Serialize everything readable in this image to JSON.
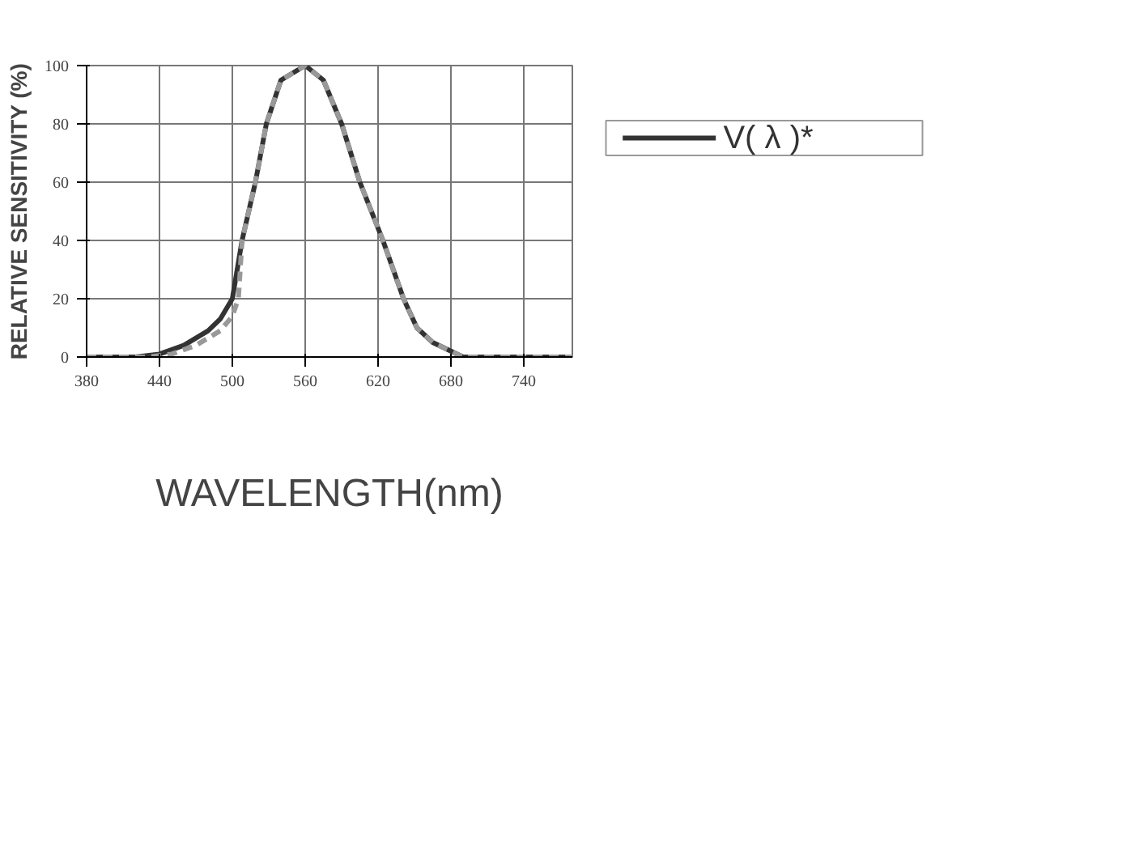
{
  "chart_data": {
    "type": "line",
    "xlabel": "WAVELENGTH(nm)",
    "ylabel": "RELATIVE SENSITIVITY (%)",
    "xlim": [
      380,
      780
    ],
    "ylim": [
      0,
      100
    ],
    "xticks": [
      380,
      440,
      500,
      560,
      620,
      680,
      740
    ],
    "yticks": [
      0,
      20,
      40,
      60,
      80,
      100
    ],
    "grid": true,
    "legend": "right",
    "series": [
      {
        "name": "V( λ )*",
        "color": "#333333",
        "line_style": "solid",
        "x": [
          380,
          420,
          440,
          460,
          480,
          490,
          500,
          508,
          519,
          528,
          540,
          560,
          575,
          590,
          605,
          624,
          641,
          652,
          665,
          680,
          690,
          740,
          780
        ],
        "values": [
          0,
          0,
          1,
          4,
          9,
          13,
          20,
          40,
          60,
          80,
          95,
          100,
          95,
          80,
          60,
          40,
          20,
          10,
          5,
          2,
          0,
          0,
          0
        ]
      },
      {
        "color": "#999999",
        "line_style": "dashed",
        "x": [
          380,
          430,
          450,
          470,
          490,
          500,
          505,
          508,
          519,
          528,
          540,
          560,
          575,
          590,
          605,
          624,
          641,
          652,
          665,
          680,
          690,
          740,
          780
        ],
        "values": [
          0,
          0,
          1,
          4,
          9,
          14,
          20,
          40,
          60,
          80,
          95,
          100,
          95,
          80,
          60,
          40,
          20,
          10,
          5,
          2,
          0,
          0,
          0
        ]
      }
    ]
  }
}
